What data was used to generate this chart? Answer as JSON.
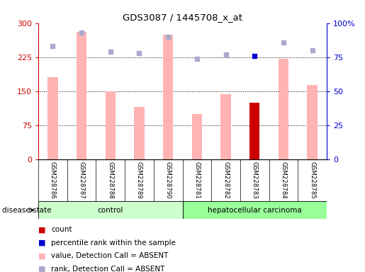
{
  "title": "GDS3087 / 1445708_x_at",
  "samples": [
    "GSM228786",
    "GSM228787",
    "GSM228788",
    "GSM228789",
    "GSM228790",
    "GSM228781",
    "GSM228782",
    "GSM228783",
    "GSM228784",
    "GSM228785"
  ],
  "bar_values": [
    180,
    280,
    150,
    115,
    275,
    100,
    143,
    125,
    222,
    163
  ],
  "bar_colors": [
    "#FFB3B3",
    "#FFB3B3",
    "#FFB3B3",
    "#FFB3B3",
    "#FFB3B3",
    "#FFB3B3",
    "#FFB3B3",
    "#CC0000",
    "#FFB3B3",
    "#FFB3B3"
  ],
  "rank_dots": [
    83,
    93,
    79,
    78,
    90,
    74,
    77,
    76,
    86,
    80
  ],
  "rank_dot_colors": [
    "#AAAACC",
    "#AAAACC",
    "#AAAACC",
    "#AAAACC",
    "#AAAACC",
    "#AAAACC",
    "#AAAACC",
    "#0000CC",
    "#AAAACC",
    "#AAAACC"
  ],
  "left_ylim": [
    0,
    300
  ],
  "left_yticks": [
    0,
    75,
    150,
    225,
    300
  ],
  "right_ylim": [
    0,
    100
  ],
  "right_yticks": [
    0,
    25,
    50,
    75,
    100
  ],
  "right_yticklabels": [
    "0",
    "25",
    "50",
    "75",
    "100%"
  ],
  "hlines": [
    75,
    150,
    225
  ],
  "group_labels": [
    "control",
    "hepatocellular carcinoma"
  ],
  "group_bg_colors": [
    "#CCFFCC",
    "#99FF99"
  ],
  "group_ranges": [
    [
      0,
      4
    ],
    [
      5,
      9
    ]
  ],
  "disease_state_label": "disease state",
  "legend_items": [
    {
      "label": "count",
      "color": "#CC0000"
    },
    {
      "label": "percentile rank within the sample",
      "color": "#0000CC"
    },
    {
      "label": "value, Detection Call = ABSENT",
      "color": "#FFB3B3"
    },
    {
      "label": "rank, Detection Call = ABSENT",
      "color": "#AAAACC"
    }
  ],
  "left_tick_color": "#CC0000",
  "right_tick_color": "#0000CC",
  "background_color": "#FFFFFF"
}
